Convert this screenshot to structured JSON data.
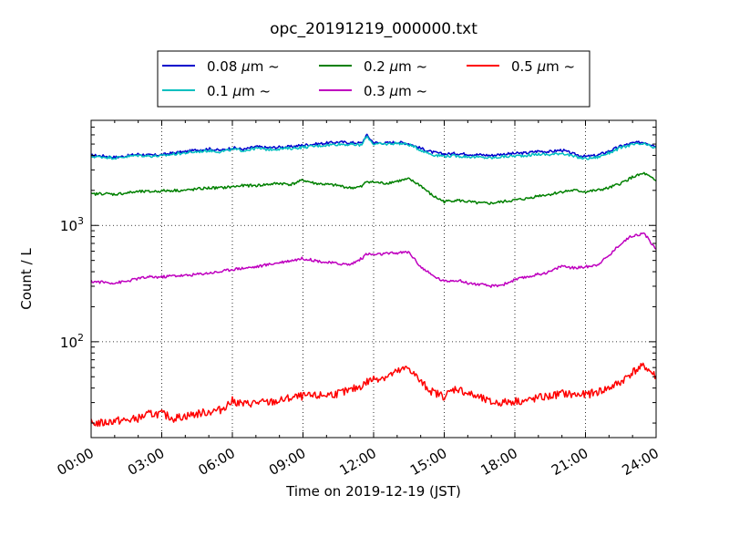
{
  "chart_data": {
    "type": "line",
    "title": "opc_20191219_000000.txt",
    "xlabel": "Time on 2019-12-19 (JST)",
    "ylabel": "Count / L",
    "yscale": "log",
    "ylim": [
      15,
      8000
    ],
    "xlim": [
      "00:00",
      "24:00"
    ],
    "grid": true,
    "legend_position": "top-center",
    "x_ticks": [
      "00:00",
      "03:00",
      "06:00",
      "09:00",
      "12:00",
      "15:00",
      "18:00",
      "21:00",
      "24:00"
    ],
    "x_hours": [
      0,
      0.5,
      1,
      1.5,
      2,
      2.5,
      3,
      3.5,
      4,
      4.5,
      5,
      5.5,
      6,
      6.5,
      7,
      7.5,
      8,
      8.5,
      9,
      9.5,
      10,
      10.5,
      11,
      11.5,
      11.7,
      12,
      12.5,
      13,
      13.5,
      14,
      14.5,
      15,
      15.5,
      16,
      16.5,
      17,
      17.5,
      18,
      18.5,
      19,
      19.5,
      20,
      20.5,
      21,
      21.5,
      22,
      22.5,
      23,
      23.5,
      24
    ],
    "y_ticks": [
      {
        "value": 100,
        "base": "10",
        "exp": "2"
      },
      {
        "value": 1000,
        "base": "10",
        "exp": "3"
      }
    ],
    "series": [
      {
        "name": "0.08",
        "unit": "μm",
        "suffix": "~",
        "color": "#0000cc",
        "values": [
          4000,
          3950,
          3850,
          3950,
          4100,
          4000,
          4050,
          4200,
          4300,
          4450,
          4550,
          4400,
          4650,
          4500,
          4750,
          4650,
          4700,
          4750,
          4900,
          5000,
          5100,
          5200,
          5150,
          5100,
          6000,
          5150,
          5100,
          5200,
          5050,
          4600,
          4250,
          4100,
          4150,
          4100,
          4050,
          4000,
          4100,
          4150,
          4200,
          4350,
          4300,
          4450,
          4100,
          3900,
          4000,
          4350,
          4800,
          5100,
          5200,
          4800
        ]
      },
      {
        "name": "0.1",
        "unit": "μm",
        "suffix": "~",
        "color": "#00bfbf",
        "values": [
          3900,
          3880,
          3800,
          3900,
          4000,
          3950,
          3950,
          4100,
          4200,
          4300,
          4400,
          4300,
          4500,
          4400,
          4600,
          4500,
          4550,
          4600,
          4700,
          4800,
          4900,
          5000,
          4950,
          4900,
          5900,
          5000,
          5000,
          5100,
          4950,
          4450,
          4050,
          3950,
          3950,
          3900,
          3850,
          3800,
          3900,
          3950,
          4000,
          4100,
          4050,
          4200,
          3900,
          3750,
          3850,
          4200,
          4650,
          4950,
          5000,
          4600
        ]
      },
      {
        "name": "0.2",
        "unit": "μm",
        "suffix": "~",
        "color": "#008000",
        "values": [
          1850,
          1880,
          1850,
          1900,
          1950,
          1950,
          1980,
          2000,
          2000,
          2050,
          2100,
          2100,
          2150,
          2200,
          2200,
          2250,
          2300,
          2250,
          2450,
          2300,
          2250,
          2200,
          2100,
          2150,
          2400,
          2350,
          2300,
          2400,
          2500,
          2200,
          1800,
          1600,
          1650,
          1600,
          1550,
          1550,
          1600,
          1650,
          1700,
          1800,
          1850,
          1950,
          2000,
          1950,
          2000,
          2100,
          2300,
          2600,
          2800,
          2400
        ]
      },
      {
        "name": "0.3",
        "unit": "μm",
        "suffix": "~",
        "color": "#bf00bf",
        "values": [
          330,
          325,
          320,
          330,
          350,
          360,
          360,
          370,
          370,
          380,
          390,
          400,
          420,
          430,
          440,
          460,
          480,
          500,
          520,
          500,
          480,
          470,
          460,
          520,
          570,
          560,
          570,
          580,
          590,
          440,
          370,
          330,
          340,
          320,
          310,
          300,
          310,
          340,
          360,
          380,
          400,
          450,
          430,
          440,
          460,
          550,
          700,
          820,
          850,
          620
        ]
      },
      {
        "name": "0.5",
        "unit": "μm",
        "suffix": "~",
        "color": "#ff0000",
        "values": [
          20,
          20,
          21,
          21,
          22,
          24,
          24,
          22,
          23,
          24,
          25,
          26,
          31,
          29,
          30,
          30,
          31,
          33,
          34,
          34,
          35,
          36,
          38,
          42,
          45,
          48,
          50,
          55,
          60,
          45,
          37,
          34,
          40,
          36,
          33,
          30,
          30,
          31,
          31,
          33,
          34,
          36,
          35,
          35,
          37,
          40,
          45,
          55,
          62,
          50
        ]
      }
    ]
  }
}
